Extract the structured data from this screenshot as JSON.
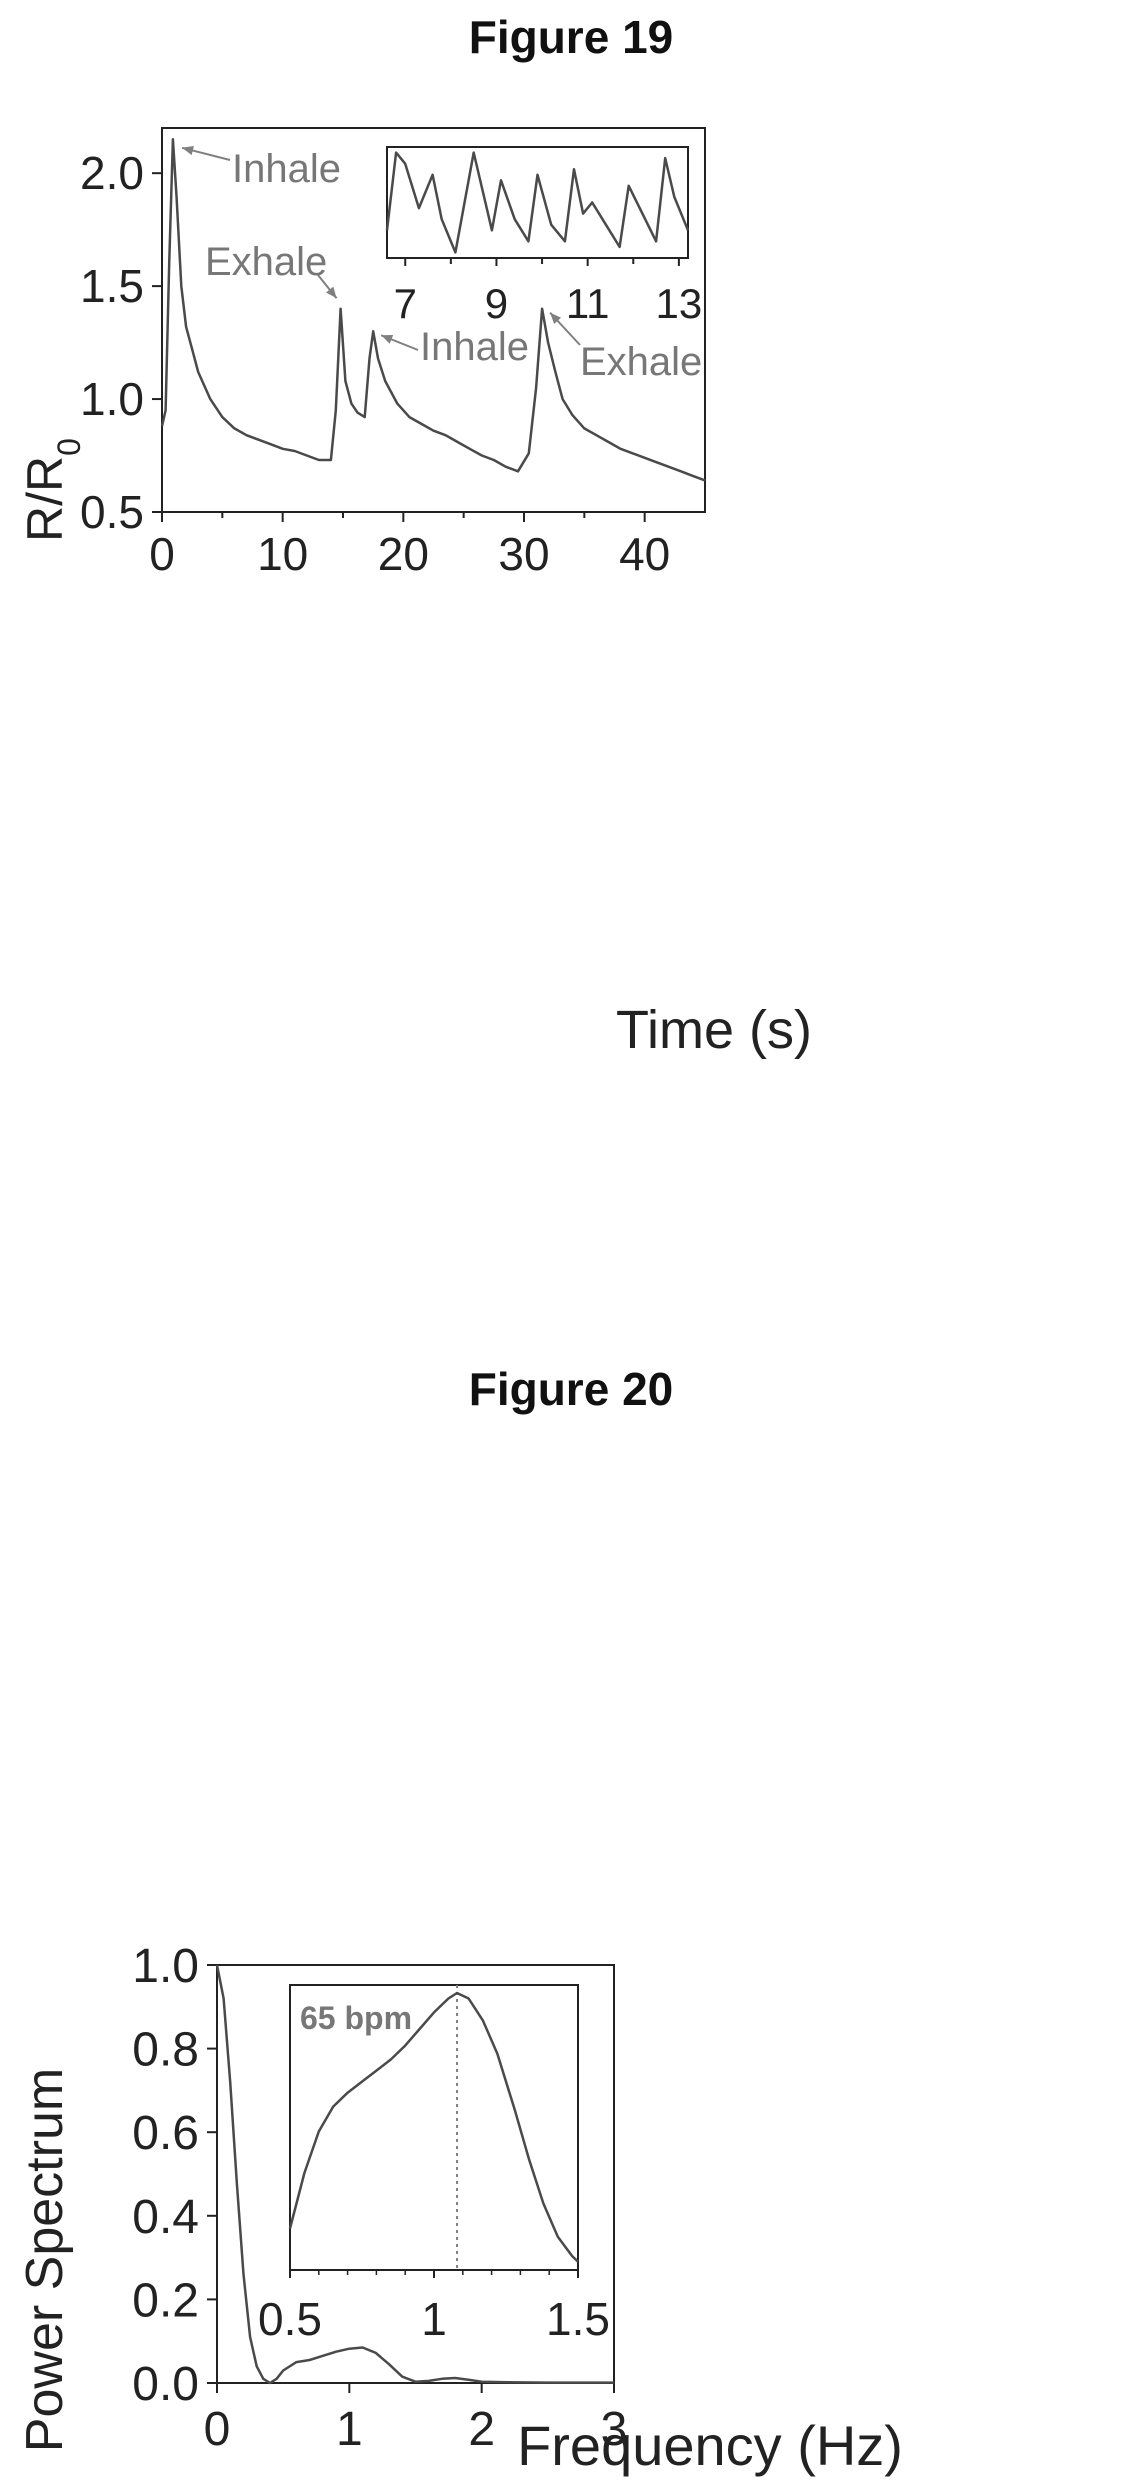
{
  "figures": {
    "fig19_title": "Figure 19",
    "fig20_title": "Figure 20"
  },
  "colors": {
    "line": "#4a4a4a",
    "annotation": "#808080",
    "axis": "#222222"
  },
  "chart_data": [
    {
      "type": "line",
      "title": "Figure 19",
      "xlabel": "Time (s)",
      "ylabel": "R/R0",
      "xlim": [
        0,
        45
      ],
      "ylim": [
        0.5,
        2.2
      ],
      "x_ticks": [
        0,
        10,
        20,
        30,
        40
      ],
      "y_ticks": [
        0.5,
        1.0,
        1.5,
        2.0
      ],
      "x_tick_labels": [
        "0",
        "10",
        "20",
        "30",
        "40"
      ],
      "y_tick_labels": [
        "0.5",
        "1.0",
        "1.5",
        "2.0"
      ],
      "grid": false,
      "annotations": [
        {
          "text": "Inhale",
          "x": 1.0,
          "y": 2.13
        },
        {
          "text": "Exhale",
          "x": 14.8,
          "y": 1.42
        },
        {
          "text": "Inhale",
          "x": 17.5,
          "y": 1.3
        },
        {
          "text": "Exhale",
          "x": 31.5,
          "y": 1.4
        }
      ],
      "series": [
        {
          "x": [
            0,
            0.3,
            0.6,
            0.9,
            1.2,
            1.6,
            2.0,
            2.5,
            3.0,
            4.0,
            5.0,
            6.0,
            7.0,
            8.0,
            9.0,
            10.0,
            11.0,
            12.0,
            13.0,
            14.0,
            14.4,
            14.8,
            15.2,
            15.7,
            16.2,
            16.8,
            17.2,
            17.5,
            17.9,
            18.5,
            19.5,
            20.5,
            21.5,
            22.5,
            23.5,
            24.5,
            25.5,
            26.5,
            27.5,
            28.5,
            29.5,
            30.4,
            31.0,
            31.5,
            32.0,
            32.6,
            33.2,
            34.0,
            35.0,
            36.0,
            37.0,
            38.0,
            39.0,
            40.0,
            41.0,
            42.0,
            43.0,
            44.0,
            45.0
          ],
          "y": [
            0.88,
            0.95,
            1.6,
            2.15,
            1.9,
            1.5,
            1.32,
            1.22,
            1.12,
            1.0,
            0.92,
            0.87,
            0.84,
            0.82,
            0.8,
            0.78,
            0.77,
            0.75,
            0.73,
            0.73,
            0.95,
            1.4,
            1.08,
            0.98,
            0.94,
            0.92,
            1.18,
            1.3,
            1.18,
            1.08,
            0.98,
            0.92,
            0.89,
            0.86,
            0.84,
            0.81,
            0.78,
            0.75,
            0.73,
            0.7,
            0.68,
            0.76,
            1.05,
            1.4,
            1.25,
            1.12,
            1.0,
            0.93,
            0.87,
            0.84,
            0.81,
            0.78,
            0.76,
            0.74,
            0.72,
            0.7,
            0.68,
            0.66,
            0.64
          ]
        }
      ],
      "inset": {
        "xlim": [
          6.6,
          13.2
        ],
        "x_ticks": [
          7,
          9,
          11,
          13
        ],
        "x_tick_labels": [
          "7",
          "9",
          "11",
          "13"
        ],
        "series": [
          {
            "x": [
              6.6,
              6.8,
              7.0,
              7.3,
              7.6,
              7.8,
              8.1,
              8.5,
              8.7,
              8.9,
              9.1,
              9.4,
              9.7,
              9.9,
              10.2,
              10.5,
              10.7,
              10.9,
              11.1,
              11.4,
              11.7,
              11.9,
              12.2,
              12.5,
              12.7,
              12.9,
              13.2
            ],
            "y": [
              0.25,
              0.95,
              0.85,
              0.45,
              0.75,
              0.35,
              0.05,
              0.95,
              0.6,
              0.25,
              0.7,
              0.35,
              0.15,
              0.75,
              0.3,
              0.15,
              0.8,
              0.4,
              0.5,
              0.3,
              0.1,
              0.65,
              0.4,
              0.15,
              0.9,
              0.55,
              0.25
            ]
          }
        ]
      }
    },
    {
      "type": "line",
      "title": "Figure 20",
      "xlabel": "Frequency (Hz)",
      "ylabel": "Power Spectrum",
      "xlim": [
        0,
        3
      ],
      "ylim": [
        0,
        1.0
      ],
      "x_ticks": [
        0,
        1,
        2,
        3
      ],
      "y_ticks": [
        0.0,
        0.2,
        0.4,
        0.6,
        0.8,
        1.0
      ],
      "x_tick_labels": [
        "0",
        "1",
        "2",
        "3"
      ],
      "y_tick_labels": [
        "0.0",
        "0.2",
        "0.4",
        "0.6",
        "0.8",
        "1.0"
      ],
      "grid": false,
      "series": [
        {
          "x": [
            0,
            0.05,
            0.1,
            0.15,
            0.2,
            0.25,
            0.3,
            0.35,
            0.4,
            0.45,
            0.5,
            0.6,
            0.7,
            0.8,
            0.9,
            1.0,
            1.1,
            1.2,
            1.3,
            1.4,
            1.5,
            1.6,
            1.7,
            1.8,
            1.9,
            2.0,
            2.2,
            2.5,
            2.8,
            3.0
          ],
          "y": [
            1.0,
            0.92,
            0.72,
            0.48,
            0.26,
            0.11,
            0.04,
            0.01,
            0.0,
            0.01,
            0.03,
            0.05,
            0.055,
            0.065,
            0.075,
            0.082,
            0.085,
            0.072,
            0.045,
            0.015,
            0.003,
            0.005,
            0.01,
            0.012,
            0.008,
            0.003,
            0.002,
            0.001,
            0.001,
            0.001
          ]
        }
      ],
      "inset": {
        "xlim": [
          0.5,
          1.5
        ],
        "x_ticks": [
          0.5,
          1,
          1.5
        ],
        "x_tick_labels": [
          "0.5",
          "1",
          "1.5"
        ],
        "marker_x": 1.08,
        "marker_label": "65 bpm",
        "series": [
          {
            "x": [
              0.5,
              0.55,
              0.6,
              0.65,
              0.7,
              0.75,
              0.8,
              0.85,
              0.9,
              0.95,
              1.0,
              1.05,
              1.08,
              1.12,
              1.17,
              1.22,
              1.28,
              1.33,
              1.38,
              1.43,
              1.48,
              1.5
            ],
            "y": [
              0.15,
              0.35,
              0.5,
              0.59,
              0.64,
              0.68,
              0.72,
              0.76,
              0.81,
              0.87,
              0.93,
              0.98,
              1.0,
              0.98,
              0.9,
              0.78,
              0.58,
              0.4,
              0.24,
              0.12,
              0.05,
              0.03
            ]
          }
        ]
      }
    }
  ]
}
